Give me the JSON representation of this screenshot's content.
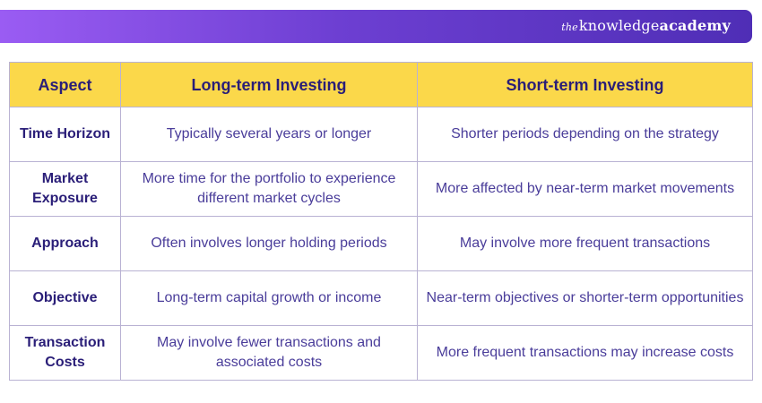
{
  "brand": {
    "prefix": "the",
    "knowledge": "knowledge",
    "academy": "academy"
  },
  "table": {
    "headers": [
      "Aspect",
      "Long-term Investing",
      "Short-term Investing"
    ],
    "rows": [
      {
        "aspect": "Time Horizon",
        "long": "Typically several years or longer",
        "short": "Shorter periods depending on the strategy"
      },
      {
        "aspect": "Market Exposure",
        "long": "More time for the portfolio to experience different market cycles",
        "short": "More affected by near-term market movements"
      },
      {
        "aspect": "Approach",
        "long": "Often involves longer holding periods",
        "short": "May involve more frequent transactions"
      },
      {
        "aspect": "Objective",
        "long": "Long-term capital growth or income",
        "short": "Near-term objectives or shorter-term opportunities"
      },
      {
        "aspect": "Transaction Costs",
        "long": "May involve fewer transactions and associated costs",
        "short": "More frequent transactions may increase costs"
      }
    ]
  },
  "colors": {
    "header_bg": "#fbd84a",
    "banner_start": "#9a5cf3",
    "banner_end": "#4f2eb6",
    "text_dark": "#2a1e78",
    "text_body": "#4a3d9a"
  }
}
